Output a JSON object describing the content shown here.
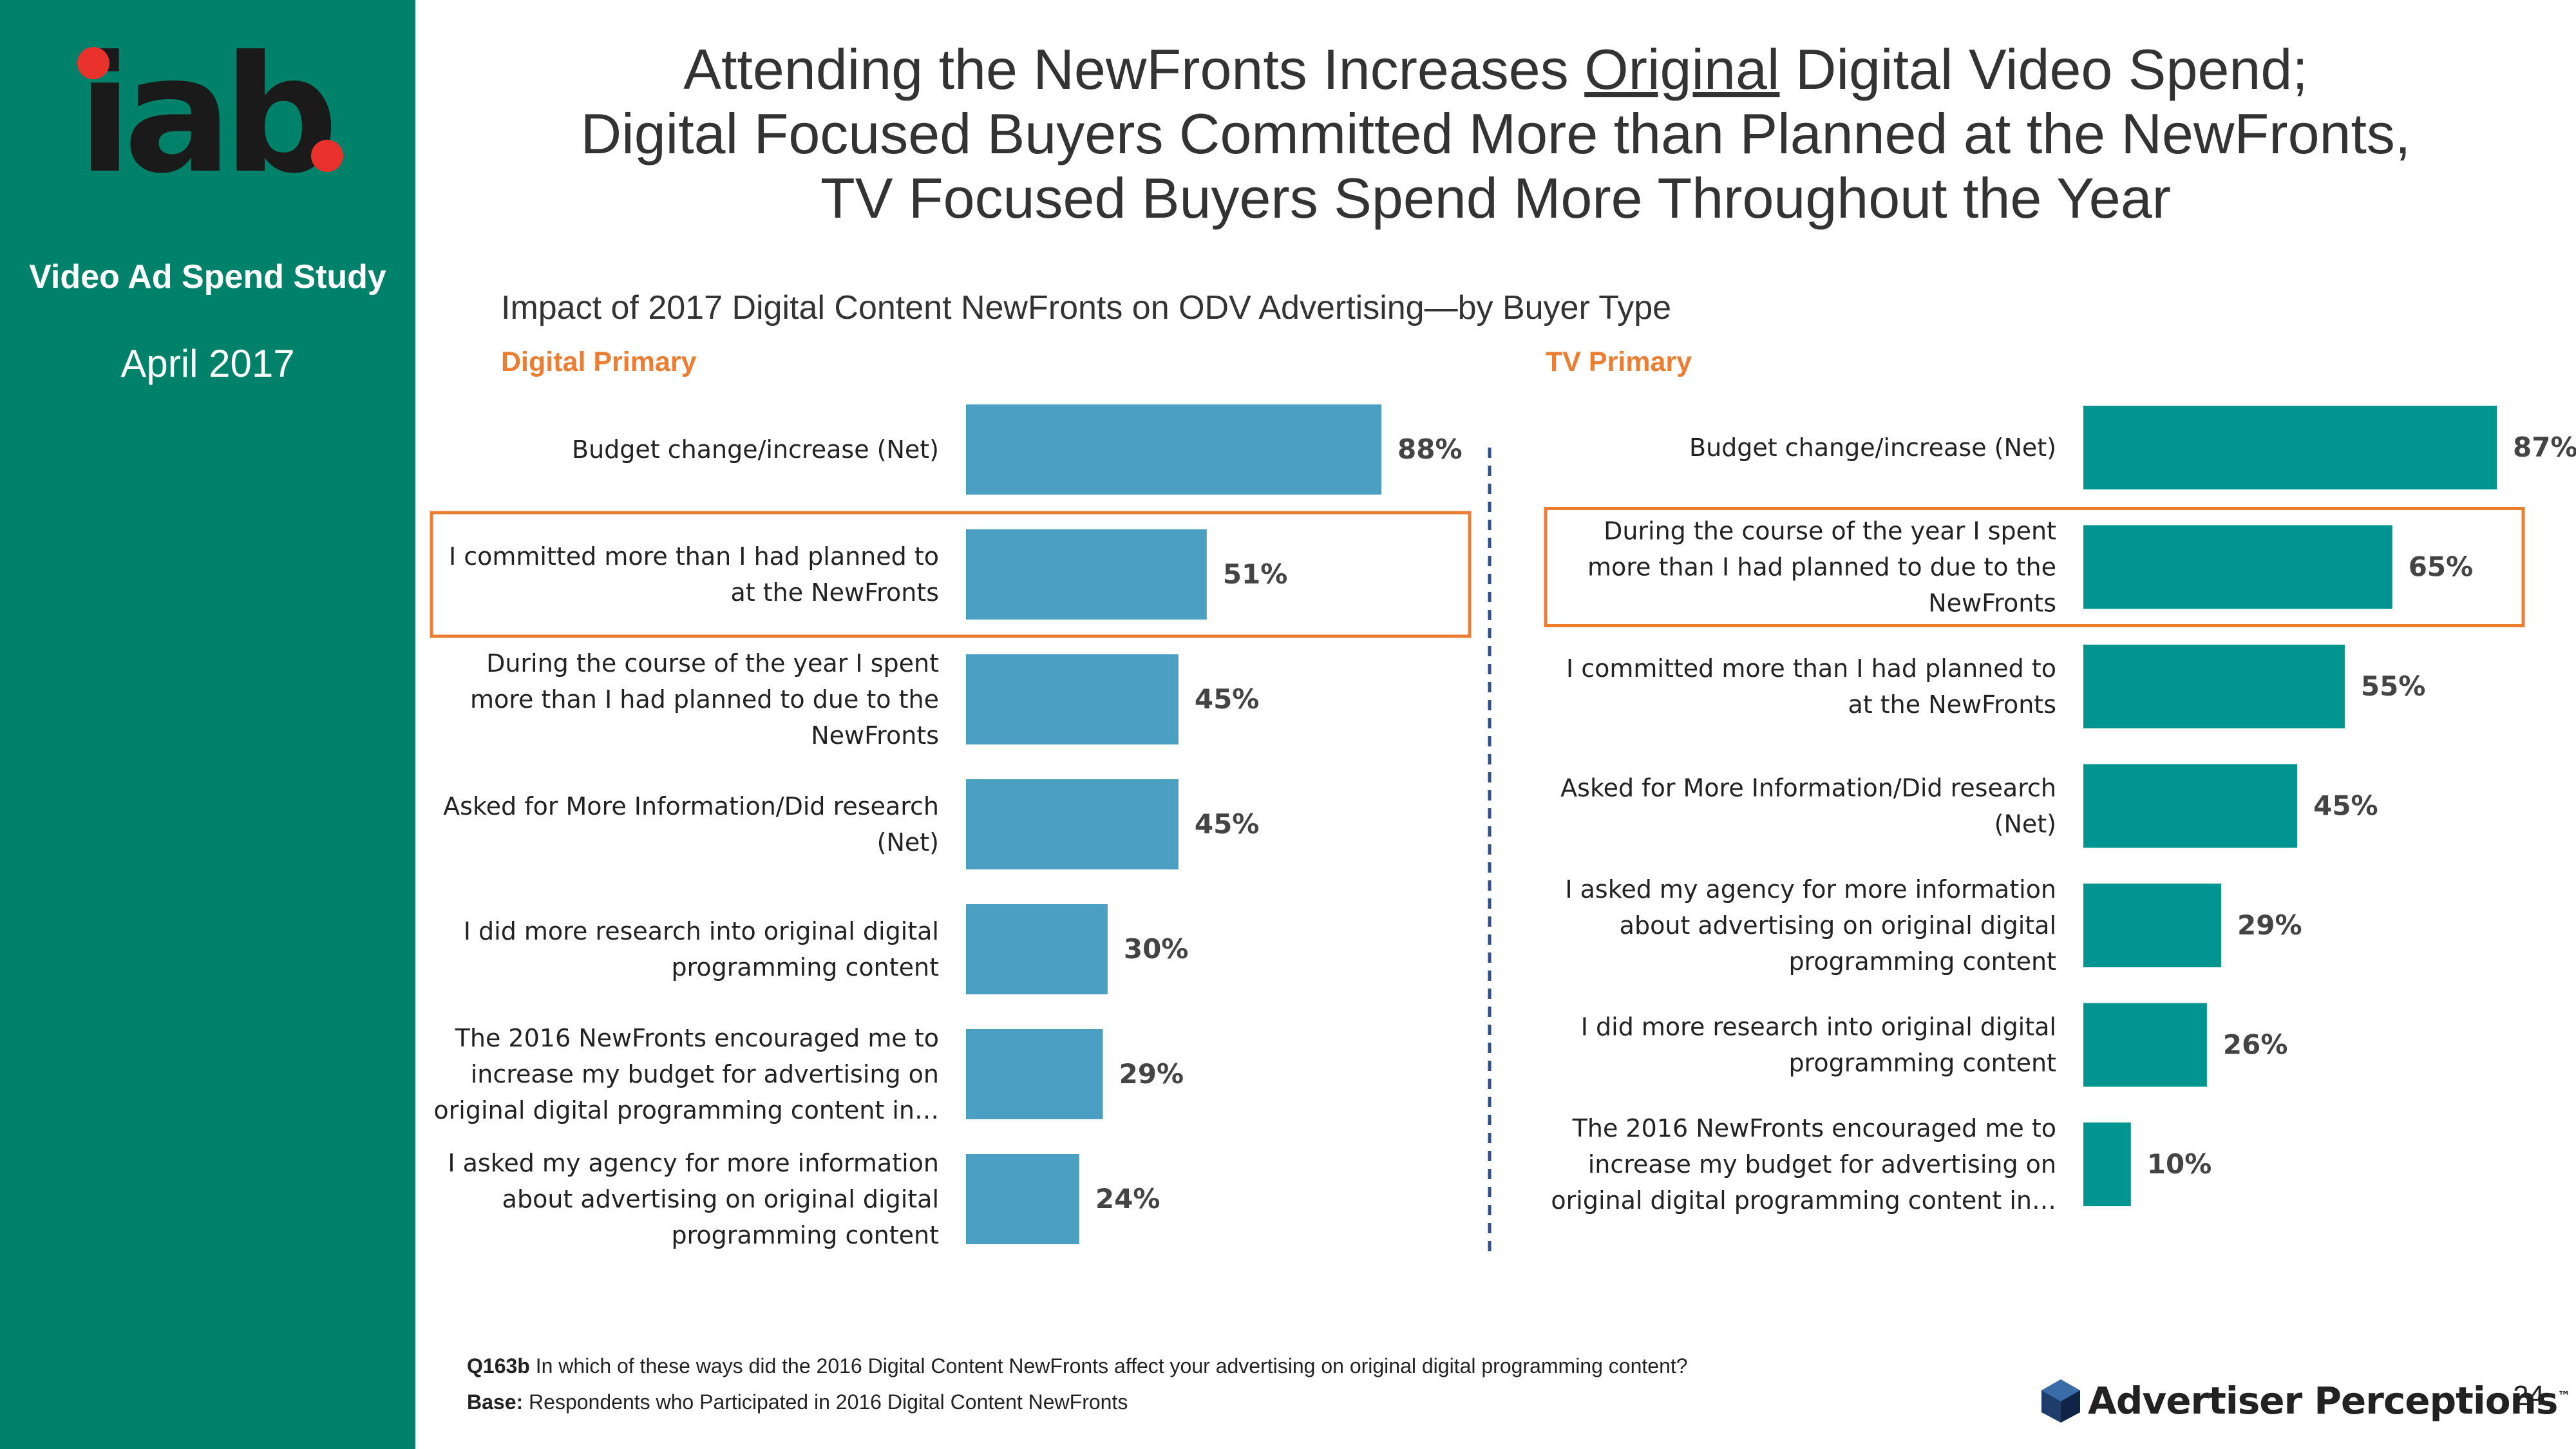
{
  "sidebar": {
    "logo_text": "iab.",
    "study": "Video Ad Spend Study",
    "date": "April 2017"
  },
  "title": {
    "line1_prefix": "Attending the NewFronts Increases ",
    "line1_underlined": "Original",
    "line1_suffix": " Digital Video Spend;",
    "line2": "Digital Focused Buyers Committed More than Planned at the NewFronts,",
    "line3": "TV Focused Buyers Spend More Throughout the Year"
  },
  "subtitle": "Impact of 2017 Digital Content NewFronts on ODV Advertising—by Buyer Type",
  "chart_data": [
    {
      "type": "bar",
      "orientation": "horizontal",
      "title": "Digital Primary",
      "color": "#4BA0C2",
      "highlight_color": "#ED7D31",
      "highlighted_category": "I committed more than I had planned to at the NewFronts",
      "categories": [
        "Budget change/increase (Net)",
        "I committed more than I had planned to at the NewFronts",
        "During the course of the year I spent more than I had planned to due to the NewFronts",
        "Asked for More Information/Did research (Net)",
        "I did more research into original digital programming content",
        "The 2016 NewFronts encouraged me to increase my budget for advertising on original digital programming content in…",
        "I asked my agency for more information about advertising on original digital programming content"
      ],
      "label_lines": [
        [
          "Budget change/increase (Net)"
        ],
        [
          "I committed more than I had planned to",
          "at the NewFronts"
        ],
        [
          "During the course of the year I spent",
          "more than I had planned to due to the",
          "NewFronts"
        ],
        [
          "Asked for More Information/Did research",
          "(Net)"
        ],
        [
          "I did more research into original digital",
          "programming content"
        ],
        [
          "The 2016 NewFronts encouraged me to",
          "increase my budget for advertising on",
          "original digital programming content in…"
        ],
        [
          "I asked my agency for more information",
          "about advertising on original digital",
          "programming content"
        ]
      ],
      "values": [
        88,
        51,
        45,
        45,
        30,
        29,
        24
      ],
      "value_labels": [
        "88%",
        "51%",
        "45%",
        "45%",
        "30%",
        "29%",
        "24%"
      ],
      "xlim": [
        0,
        100
      ],
      "xlabel": "",
      "ylabel": ""
    },
    {
      "type": "bar",
      "orientation": "horizontal",
      "title": "TV Primary",
      "color": "#00968F",
      "highlight_color": "#ED7D31",
      "highlighted_category": "During the course of the year I spent more than I had planned to due to the NewFronts",
      "categories": [
        "Budget change/increase (Net)",
        "During the course of the year I spent more than I had planned to due to the NewFronts",
        "I committed more than I had planned to at the NewFronts",
        "Asked for More Information/Did research (Net)",
        "I asked my agency for more information about advertising on original digital programming content",
        "I did more research into original digital programming content",
        "The 2016 NewFronts encouraged me to increase my budget for advertising on original digital programming content in…"
      ],
      "label_lines": [
        [
          "Budget change/increase (Net)"
        ],
        [
          "During the course of the year I spent",
          "more than I had planned to due to the",
          "NewFronts"
        ],
        [
          "I committed more than I had planned to",
          "at the NewFronts"
        ],
        [
          "Asked for More Information/Did research",
          "(Net)"
        ],
        [
          "I asked my agency for more information",
          "about advertising on original digital",
          "programming content"
        ],
        [
          "I did more research into original digital",
          "programming content"
        ],
        [
          "The 2016 NewFronts encouraged me to",
          "increase my budget for advertising on",
          "original digital programming content in…"
        ]
      ],
      "values": [
        87,
        65,
        55,
        45,
        29,
        26,
        10
      ],
      "value_labels": [
        "87%",
        "65%",
        "55%",
        "45%",
        "29%",
        "26%",
        "10%"
      ],
      "xlim": [
        0,
        100
      ],
      "xlabel": "",
      "ylabel": ""
    }
  ],
  "footnote": {
    "q_label": "Q163b",
    "q_text": " In which of these ways did the 2016 Digital Content NewFronts affect your advertising on original digital programming content?",
    "base_label": "Base:",
    "base_text": " Respondents who Participated in 2016 Digital Content NewFronts"
  },
  "brand": "Advertiser Perceptions",
  "brand_tm": "™",
  "page_number": "24",
  "colors": {
    "sidebar": "#00826A",
    "logo_dot": "#E8322B",
    "accent_orange": "#ED7D31",
    "divider": "#2F4F8F"
  }
}
